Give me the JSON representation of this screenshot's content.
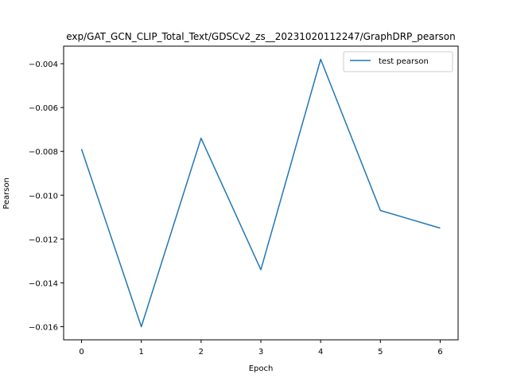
{
  "chart_data": {
    "type": "line",
    "title": "exp/GAT_GCN_CLIP_Total_Text/GDSCv2_zs__20231020112247/GraphDRP_pearson",
    "xlabel": "Epoch",
    "ylabel": "Pearson",
    "xlim": [
      -0.3,
      6.3
    ],
    "ylim": [
      -0.0166,
      -0.0032
    ],
    "x_ticks": [
      0,
      1,
      2,
      3,
      4,
      5,
      6
    ],
    "x_tick_labels": [
      "0",
      "1",
      "2",
      "3",
      "4",
      "5",
      "6"
    ],
    "y_ticks": [
      -0.016,
      -0.014,
      -0.012,
      -0.01,
      -0.008,
      -0.006,
      -0.004
    ],
    "y_tick_labels": [
      "−0.016",
      "−0.014",
      "−0.012",
      "−0.010",
      "−0.008",
      "−0.006",
      "−0.004"
    ],
    "grid": false,
    "legend_position": "upper right",
    "series": [
      {
        "name": "test pearson",
        "color": "#1f77b4",
        "x": [
          0,
          1,
          2,
          3,
          4,
          5,
          6
        ],
        "y": [
          -0.0079,
          -0.016,
          -0.0074,
          -0.0134,
          -0.0038,
          -0.0107,
          -0.0115
        ]
      }
    ]
  }
}
